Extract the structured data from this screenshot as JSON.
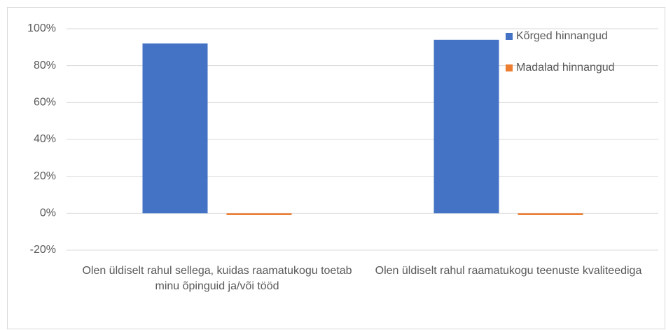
{
  "chart_data": {
    "type": "bar",
    "categories": [
      "Olen üldiselt rahul sellega, kuidas raamatukogu toetab minu õpinguid ja/või tööd",
      "Olen üldiselt rahul raamatukogu teenuste kvaliteediga"
    ],
    "series": [
      {
        "name": "Kõrged hinnangud",
        "color": "#4472c4",
        "values": [
          92,
          94
        ]
      },
      {
        "name": "Madalad hinnangud",
        "color": "#ed7d31",
        "values": [
          -1,
          -1
        ]
      }
    ],
    "ylim": [
      -20,
      100
    ],
    "yticks": [
      {
        "value": -20,
        "label": "-20%"
      },
      {
        "value": 0,
        "label": "0%"
      },
      {
        "value": 20,
        "label": "20%"
      },
      {
        "value": 40,
        "label": "40%"
      },
      {
        "value": 60,
        "label": "60%"
      },
      {
        "value": 80,
        "label": "80%"
      },
      {
        "value": 100,
        "label": "100%"
      }
    ],
    "grid": true,
    "legend": "top-right"
  }
}
